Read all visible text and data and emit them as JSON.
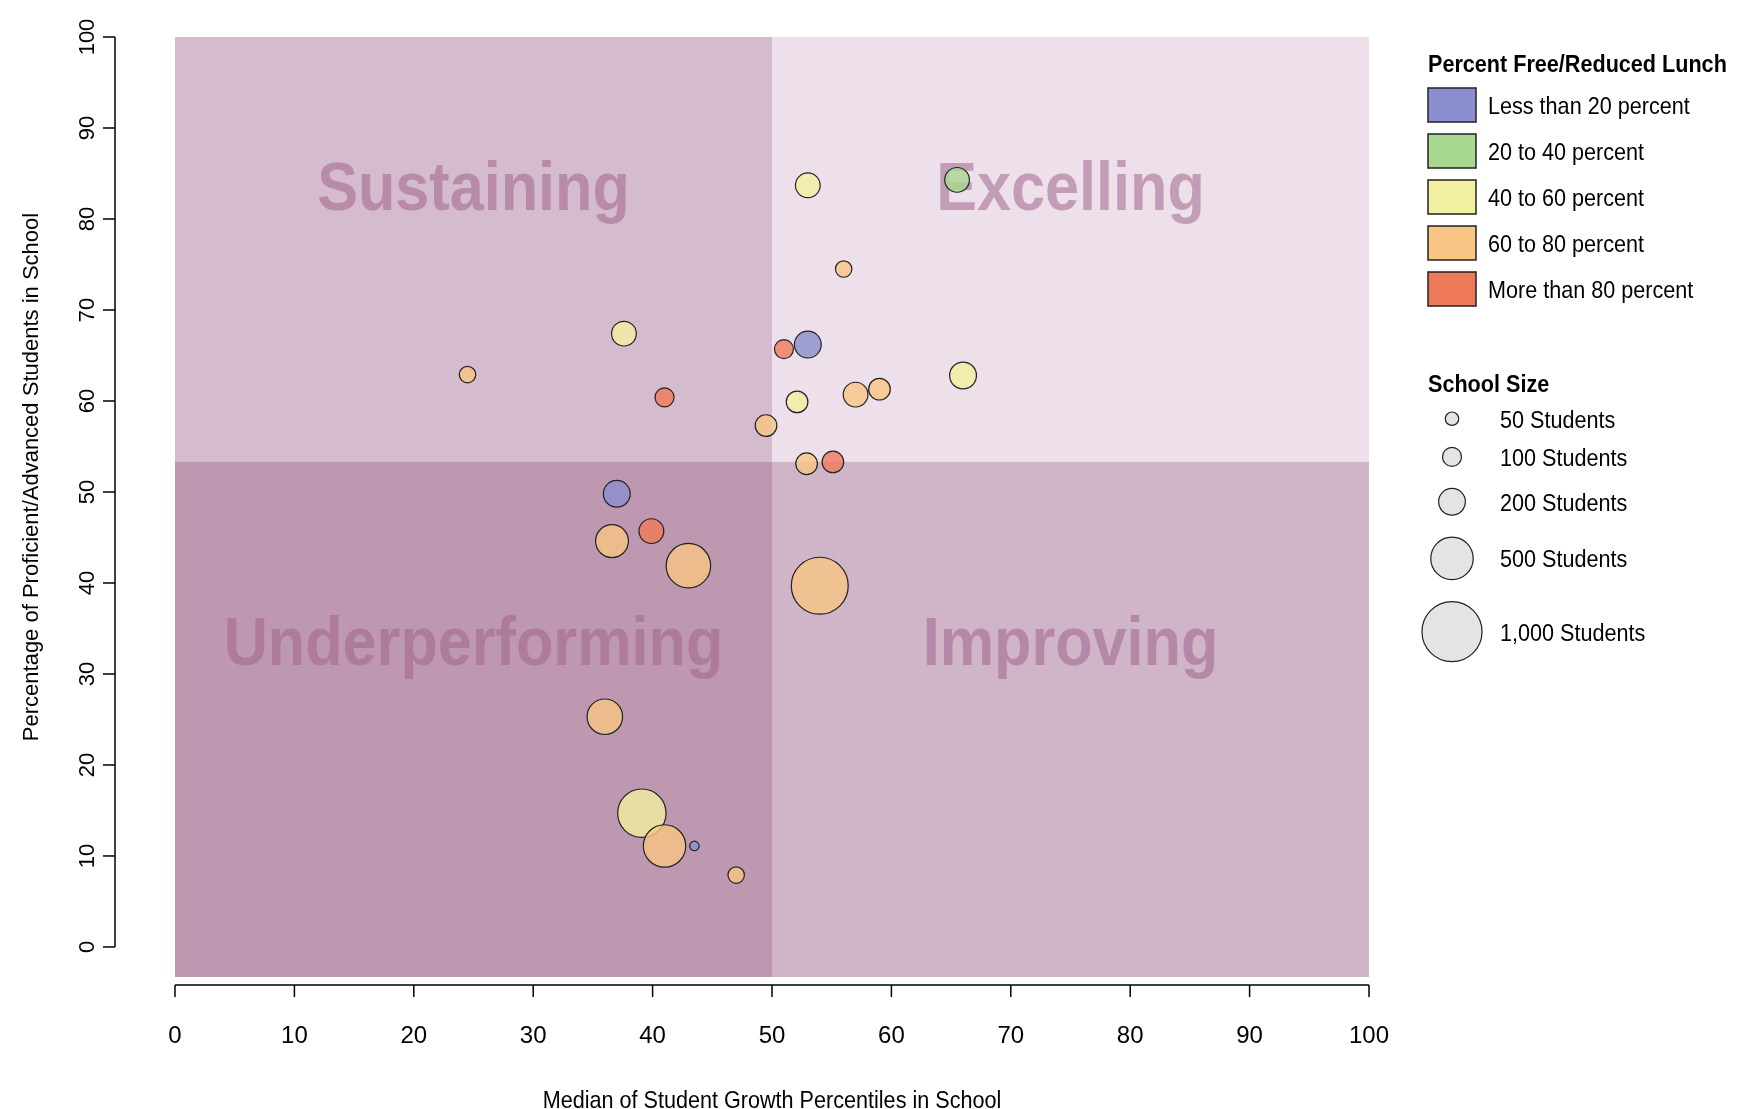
{
  "chart_data": {
    "type": "bubble",
    "xlabel": "Median of Student Growth Percentiles in School",
    "ylabel": "Percentage of Proficient/Advanced Students in School",
    "legend_title": "Percent Free/Reduced Lunch",
    "legend": "top right",
    "xlim": [
      0,
      100
    ],
    "xticks": [
      0,
      10,
      20,
      30,
      40,
      50,
      60,
      70,
      80,
      90,
      100
    ],
    "ylim": [
      -3.3,
      100
    ],
    "yticks": [
      0,
      10,
      20,
      30,
      40,
      50,
      60,
      70,
      80,
      90,
      100
    ],
    "size_legend": [
      {
        "value": 50,
        "label": "50 Students"
      },
      {
        "value": 100,
        "label": "100 Students"
      },
      {
        "value": 200,
        "label": "200 Students"
      },
      {
        "value": 500,
        "label": "500 Students"
      },
      {
        "value": 1000,
        "label": "1,000 Students"
      }
    ],
    "bands": [
      {
        "axis": "x",
        "from": 0,
        "to": 100,
        "color": "#ede0ea"
      },
      {
        "axis": "x",
        "from": 0,
        "to": 50,
        "color": "#8a4a78"
      },
      {
        "axis": "y",
        "from": -3.3,
        "to": 53.3,
        "color": "#7a3060"
      }
    ],
    "annotations": [
      "Sustaining",
      "Excelling",
      "Underperforming",
      "Improving",
      "School Size"
    ],
    "series": [
      {
        "name": "Less than 20 percent",
        "color": "#8b8fd0",
        "x": [
          53,
          37,
          43.5
        ],
        "values": [
          66.2,
          49.8,
          11.1
        ],
        "sizes": [
          200,
          200,
          25
        ]
      },
      {
        "name": "20 to 40 percent",
        "color": "#a8d890",
        "x": [
          65.5
        ],
        "values": [
          84.3
        ],
        "sizes": [
          170
        ]
      },
      {
        "name": "40 to 60 percent",
        "color": "#f2f0a0",
        "x": [
          37.6,
          53,
          52.1,
          66,
          39.1
        ],
        "values": [
          67.4,
          83.7,
          59.9,
          62.8,
          14.7
        ],
        "sizes": [
          170,
          170,
          130,
          200,
          650
        ]
      },
      {
        "name": "60 to 80 percent",
        "color": "#f8c584",
        "x": [
          24.5,
          56,
          49.5,
          57,
          59,
          52.9,
          36.6,
          43,
          54,
          36,
          41,
          47
        ],
        "values": [
          62.9,
          74.5,
          57.3,
          60.7,
          61.3,
          53.1,
          44.6,
          41.9,
          39.7,
          25.3,
          11.1,
          7.9
        ],
        "sizes": [
          75,
          75,
          130,
          170,
          130,
          130,
          300,
          550,
          900,
          350,
          500,
          75
        ]
      },
      {
        "name": "More than 80 percent",
        "color": "#ef7a5a",
        "x": [
          41,
          51,
          55.1,
          39.9
        ],
        "values": [
          60.4,
          65.7,
          53.3,
          45.7
        ],
        "sizes": [
          100,
          100,
          130,
          170
        ]
      }
    ]
  }
}
